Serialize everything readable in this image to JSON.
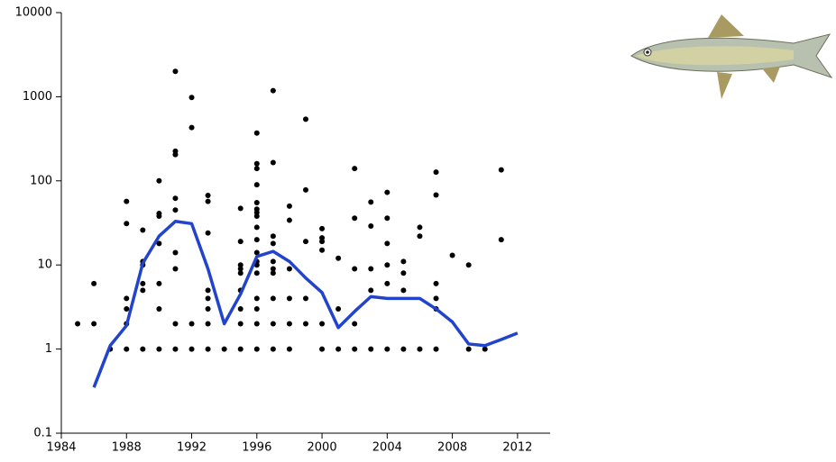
{
  "chart_data": {
    "type": "scatter",
    "log_y": true,
    "xlim": [
      1984,
      2014
    ],
    "xticks": [
      1984,
      1988,
      1992,
      1996,
      2000,
      2004,
      2008,
      2012
    ],
    "ylim": [
      0.1,
      10000
    ],
    "yticks": [
      0.1,
      1,
      10,
      100,
      1000,
      10000
    ],
    "series": [
      {
        "type": "scatter",
        "color": "#000000",
        "x": [
          1985,
          1986,
          1986,
          1987,
          1988,
          1988,
          1988,
          1988,
          1988,
          1988,
          1989,
          1989,
          1989,
          1989,
          1989,
          1989,
          1990,
          1990,
          1990,
          1990,
          1990,
          1990,
          1990,
          1991,
          1991,
          1991,
          1991,
          1991,
          1991,
          1991,
          1991,
          1991,
          1992,
          1992,
          1992,
          1992,
          1993,
          1993,
          1993,
          1993,
          1993,
          1993,
          1993,
          1993,
          1994,
          1995,
          1995,
          1995,
          1995,
          1995,
          1995,
          1995,
          1995,
          1995,
          1996,
          1996,
          1996,
          1996,
          1996,
          1996,
          1996,
          1996,
          1996,
          1996,
          1996,
          1996,
          1996,
          1996,
          1996,
          1996,
          1996,
          1996,
          1997,
          1997,
          1997,
          1997,
          1997,
          1997,
          1997,
          1997,
          1997,
          1997,
          1998,
          1998,
          1998,
          1998,
          1998,
          1998,
          1999,
          1999,
          1999,
          1999,
          1999,
          2000,
          2000,
          2000,
          2000,
          2000,
          2000,
          2001,
          2001,
          2001,
          2002,
          2002,
          2002,
          2002,
          2002,
          2003,
          2003,
          2003,
          2003,
          2003,
          2004,
          2004,
          2004,
          2004,
          2004,
          2004,
          2005,
          2005,
          2005,
          2005,
          2006,
          2006,
          2006,
          2007,
          2007,
          2007,
          2007,
          2007,
          2007,
          2008,
          2009,
          2009,
          2010,
          2011,
          2011
        ],
        "values": [
          2,
          2,
          6,
          1,
          1,
          2,
          3,
          4,
          31,
          57,
          1,
          5,
          6,
          10,
          11,
          26,
          1,
          3,
          6,
          18,
          38,
          41,
          100,
          1,
          2,
          9,
          14,
          45,
          62,
          205,
          225,
          2000,
          1,
          2,
          430,
          980,
          1,
          2,
          3,
          4,
          5,
          24,
          57,
          67,
          1,
          1,
          2,
          3,
          5,
          8,
          9,
          10,
          19,
          47,
          1,
          2,
          3,
          4,
          8,
          10,
          11,
          14,
          20,
          28,
          38,
          42,
          46,
          55,
          90,
          140,
          160,
          370,
          1,
          2,
          4,
          8,
          9,
          11,
          18,
          22,
          165,
          1180,
          1,
          2,
          4,
          9,
          34,
          50,
          2,
          4,
          19,
          78,
          540,
          1,
          2,
          15,
          19,
          21,
          27,
          1,
          3,
          12,
          1,
          2,
          9,
          36,
          140,
          1,
          5,
          9,
          29,
          56,
          1,
          6,
          10,
          18,
          36,
          73,
          1,
          5,
          8,
          11,
          1,
          22,
          28,
          1,
          3,
          4,
          6,
          68,
          127,
          13,
          1,
          10,
          1,
          20,
          135
        ]
      },
      {
        "type": "line",
        "color": "#2244cc",
        "x": [
          1986,
          1987,
          1988,
          1989,
          1990,
          1991,
          1992,
          1993,
          1994,
          1995,
          1996,
          1997,
          1998,
          1999,
          2000,
          2001,
          2002,
          2003,
          2004,
          2005,
          2006,
          2007,
          2008,
          2009,
          2010,
          2011,
          2012
        ],
        "values": [
          0.35,
          1.1,
          1.9,
          10.5,
          22,
          33,
          31,
          9,
          2,
          4.5,
          12.6,
          14.5,
          11,
          7,
          4.7,
          1.8,
          2.8,
          4.2,
          4,
          4,
          4,
          3,
          2.1,
          1.15,
          1.1,
          1.3,
          1.55
        ]
      }
    ]
  }
}
